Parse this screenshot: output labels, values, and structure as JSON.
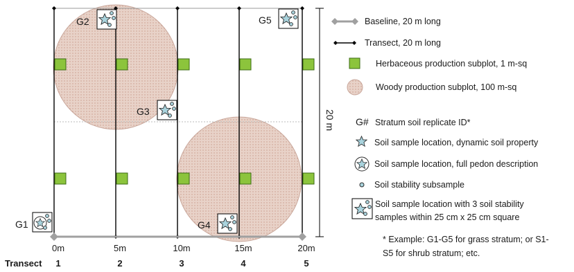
{
  "diagram": {
    "dimension_label": "20 m",
    "distance_ticks": [
      "0m",
      "5m",
      "10m",
      "15m",
      "20m"
    ],
    "transect_heading": "Transect",
    "transect_numbers": [
      "1",
      "2",
      "3",
      "4",
      "5"
    ],
    "plot_labels": [
      "G1",
      "G2",
      "G3",
      "G4",
      "G5"
    ]
  },
  "legend": {
    "baseline": "Baseline, 20 m long",
    "transect": "Transect, 20 m long",
    "herbaceous": "Herbaceous  production subplot, 1 m-sq",
    "woody": "Woody production subplot, 100 m-sq",
    "stratum_symbol": "G#",
    "stratum": "Stratum soil replicate ID*",
    "dynamic": "Soil sample location, dynamic soil property",
    "pedon": "Soil sample location, full pedon description",
    "stability": "Soil stability subsample",
    "square_line1": "Soil sample location with 3 soil stability",
    "square_line2": "samples within 25 cm x 25 cm square",
    "footnote_line1": "* Example: G1-G5 for grass stratum; or S1-",
    "footnote_line2": "S5 for shrub stratum; etc."
  },
  "colors": {
    "herbaceous_fill": "#8cc43c",
    "herbaceous_stroke": "#3d6b14",
    "woody_fill": "#e8d2c8",
    "woody_stroke": "#c9a89c",
    "star_fill": "#a9d3dd",
    "baseline": "#a0a0a0",
    "transect": "#000000"
  }
}
